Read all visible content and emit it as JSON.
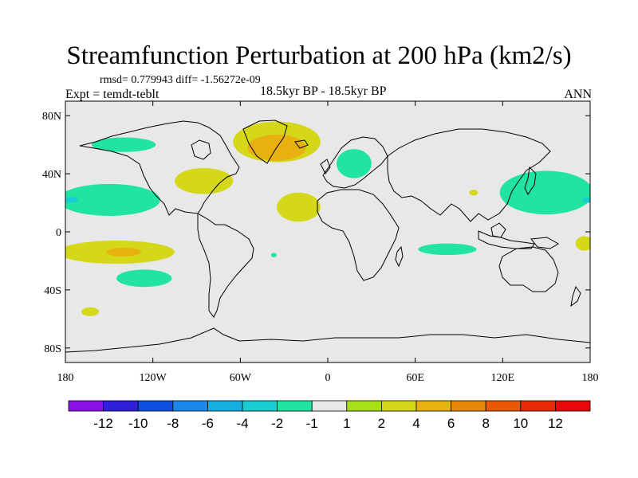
{
  "header": {
    "title": "Streamfunction Perturbation at 200 hPa (km2/s)",
    "stats": "rmsd= 0.779943 diff= -1.56272e-09",
    "expt": "Expt = temdt-teblt",
    "period": "18.5kyr BP - 18.5kyr BP",
    "season": "ANN"
  },
  "chart_data": {
    "type": "heatmap",
    "projection": "cylindrical-equidistant",
    "xlim": [
      -180,
      180
    ],
    "ylim": [
      -90,
      90
    ],
    "x_ticks": [
      {
        "value": -180,
        "label": "180"
      },
      {
        "value": -120,
        "label": "120W"
      },
      {
        "value": -60,
        "label": "60W"
      },
      {
        "value": 0,
        "label": "0"
      },
      {
        "value": 60,
        "label": "60E"
      },
      {
        "value": 120,
        "label": "120E"
      },
      {
        "value": 180,
        "label": "180"
      }
    ],
    "y_ticks": [
      {
        "value": 80,
        "label": "80N"
      },
      {
        "value": 40,
        "label": "40N"
      },
      {
        "value": 0,
        "label": "0"
      },
      {
        "value": -40,
        "label": "40S"
      },
      {
        "value": -80,
        "label": "80S"
      }
    ],
    "colorbar": {
      "labels": [
        "-12",
        "-10",
        "-8",
        "-6",
        "-4",
        "-2",
        "-1",
        "1",
        "2",
        "4",
        "6",
        "8",
        "10",
        "12"
      ],
      "colors": [
        "#8a12e6",
        "#3020d8",
        "#1050e0",
        "#1a88e8",
        "#14aee0",
        "#18ccd0",
        "#20e4a0",
        "#e8e8e8",
        "#a8e018",
        "#d4d818",
        "#e8b010",
        "#e88808",
        "#e85808",
        "#e82a08",
        "#e80808"
      ]
    },
    "regions": [
      {
        "name": "north-atlantic-positive",
        "level": 2,
        "lon": -35,
        "lat": 62,
        "dlon": 30,
        "dlat": 14
      },
      {
        "name": "north-atlantic-core",
        "level": 4,
        "lon": -35,
        "lat": 58,
        "dlon": 20,
        "dlat": 9
      },
      {
        "name": "north-america-positive",
        "level": 2,
        "lon": -85,
        "lat": 35,
        "dlon": 20,
        "dlat": 9
      },
      {
        "name": "west-africa-positive",
        "level": 2,
        "lon": -20,
        "lat": 17,
        "dlon": 15,
        "dlat": 10
      },
      {
        "name": "south-pacific-positive",
        "level": 2,
        "lon": -145,
        "lat": -14,
        "dlon": 40,
        "dlat": 8
      },
      {
        "name": "south-pacific-core",
        "level": 4,
        "lon": -140,
        "lat": -14,
        "dlon": 12,
        "dlat": 3
      },
      {
        "name": "south-pacific-west",
        "level": 2,
        "lon": -163,
        "lat": -55,
        "dlon": 6,
        "dlat": 3
      },
      {
        "name": "tibet-positive",
        "level": 2,
        "lon": 100,
        "lat": 27,
        "dlon": 3,
        "dlat": 2
      },
      {
        "name": "date-line-positive",
        "level": 2,
        "lon": 176,
        "lat": -8,
        "dlon": 6,
        "dlat": 5
      },
      {
        "name": "alaska-negative",
        "level": -2,
        "lon": -140,
        "lat": 60,
        "dlon": 22,
        "dlat": 5
      },
      {
        "name": "north-pacific-negative",
        "level": -2,
        "lon": -150,
        "lat": 22,
        "dlon": 35,
        "dlat": 11
      },
      {
        "name": "north-pacific-core",
        "level": -4,
        "lon": -176,
        "lat": 22,
        "dlon": 5,
        "dlat": 2
      },
      {
        "name": "europe-negative",
        "level": -2,
        "lon": 18,
        "lat": 47,
        "dlon": 12,
        "dlat": 10
      },
      {
        "name": "west-pacific-negative",
        "level": -2,
        "lon": 150,
        "lat": 27,
        "dlon": 32,
        "dlat": 15
      },
      {
        "name": "west-pacific-core",
        "level": -4,
        "lon": 178,
        "lat": 22,
        "dlon": 3,
        "dlat": 2
      },
      {
        "name": "indian-ocean-negative",
        "level": -2,
        "lon": 82,
        "lat": -12,
        "dlon": 20,
        "dlat": 4
      },
      {
        "name": "south-pacific-negative",
        "level": -2,
        "lon": -126,
        "lat": -32,
        "dlon": 19,
        "dlat": 6
      },
      {
        "name": "brazil-negative",
        "level": -2,
        "lon": -37,
        "lat": -16,
        "dlon": 2,
        "dlat": 1.5
      }
    ]
  }
}
